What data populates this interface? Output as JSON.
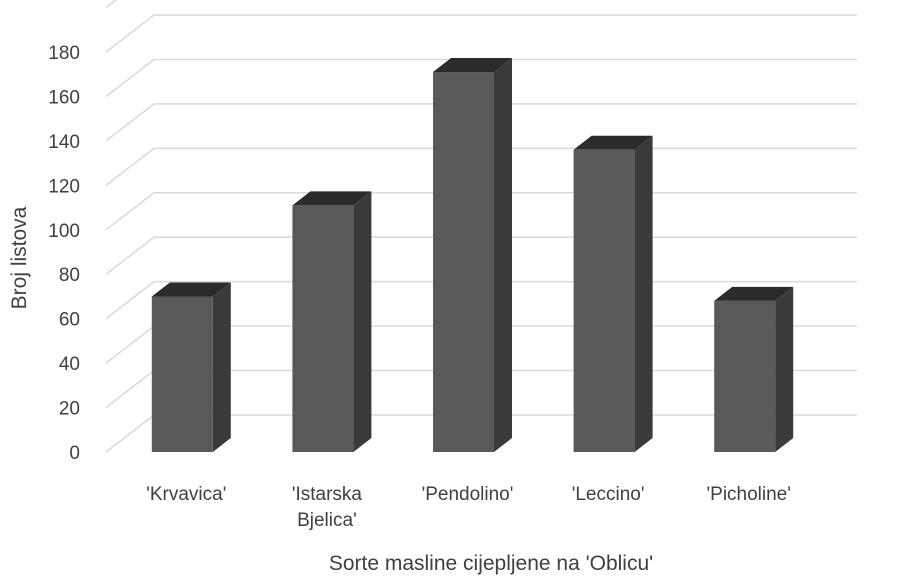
{
  "chart_data": {
    "type": "bar",
    "style": "3d-column",
    "categories": [
      "'Krvavica'",
      "'Istarska Bjelica'",
      "'Pendolino'",
      "'Leccino'",
      "'Picholine'"
    ],
    "category_label_lines": [
      [
        "'Krvavica'"
      ],
      [
        "'Istarska",
        "Bjelica'"
      ],
      [
        "'Pendolino'"
      ],
      [
        "'Leccino'"
      ],
      [
        "'Picholine'"
      ]
    ],
    "values": [
      70,
      111,
      171,
      136,
      68
    ],
    "xlabel": "Sorte masline cijepljene na 'Oblicu'",
    "ylabel": "Broj listova",
    "ylim": [
      0,
      200
    ],
    "yticks": [
      0,
      20,
      40,
      60,
      80,
      100,
      120,
      140,
      160,
      180
    ],
    "grid": true,
    "legend": "none",
    "colors": {
      "bar_front": "#595959",
      "bar_top": "#2b2b2b",
      "bar_side": "#3a3a3a",
      "gridline": "#d9d9d9",
      "text": "#404040"
    }
  }
}
